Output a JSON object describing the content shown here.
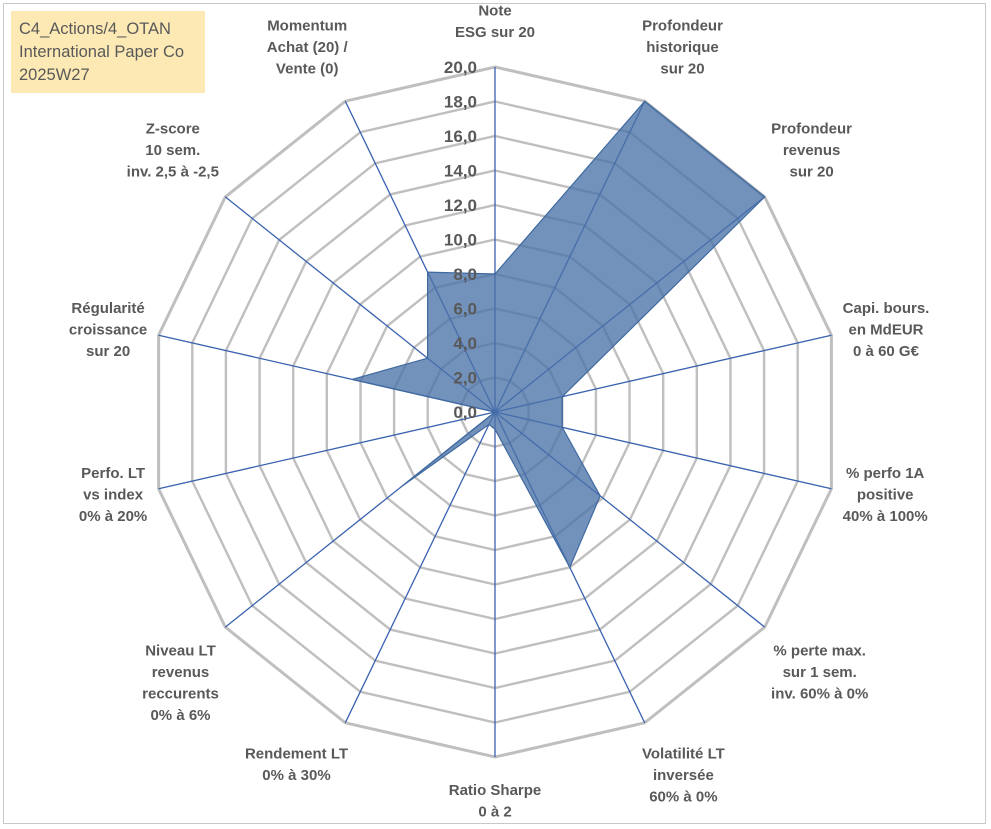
{
  "title_lines": [
    "C4_Actions/4_OTAN",
    "International Paper Co",
    "2025W27"
  ],
  "chart_data": {
    "type": "radar",
    "rlim": [
      0,
      20
    ],
    "tick_step": 2,
    "tick_labels": [
      "0,0",
      "2,0",
      "4,0",
      "6,0",
      "8,0",
      "10,0",
      "12,0",
      "14,0",
      "16,0",
      "18,0",
      "20,0"
    ],
    "grid": true,
    "legend": "none",
    "axes": [
      [
        "Note",
        "ESG sur 20"
      ],
      [
        "Profondeur",
        "historique",
        "sur 20"
      ],
      [
        "Profondeur",
        "revenus",
        "sur 20"
      ],
      [
        "Capi. bours.",
        "en MdEUR",
        "0 à 60 G€"
      ],
      [
        "% perfo 1A",
        "positive",
        "40% à 100%"
      ],
      [
        "% perte max.",
        "sur 1 sem.",
        "inv. 60% à 0%"
      ],
      [
        "Volatilité LT",
        "inversée",
        "60% à 0%"
      ],
      [
        "Ratio Sharpe",
        "0 à 2"
      ],
      [
        "Rendement LT",
        "0% à 30%"
      ],
      [
        "Niveau LT",
        "revenus",
        "reccurents",
        "0% à 6%"
      ],
      [
        "Perfo. LT",
        "vs index",
        "0% à 20%"
      ],
      [
        "Régularité",
        "croissance",
        "sur 20"
      ],
      [
        "Z-score",
        "10 sem.",
        "inv. 2,5 à -2,5"
      ],
      [
        "Momentum",
        "Achat (20) /",
        "Vente (0)"
      ]
    ],
    "series": [
      {
        "values": [
          8.0,
          20.0,
          20.0,
          4.0,
          4.0,
          7.8,
          10.0,
          1.0,
          0.8,
          7.0,
          0.0,
          8.5,
          5.0,
          9.0
        ]
      }
    ],
    "colors": {
      "fill": "#4a72a8",
      "stroke": "#3f6aa0",
      "spoke": "#3a62b0",
      "grid": "#bfbfbf"
    }
  }
}
